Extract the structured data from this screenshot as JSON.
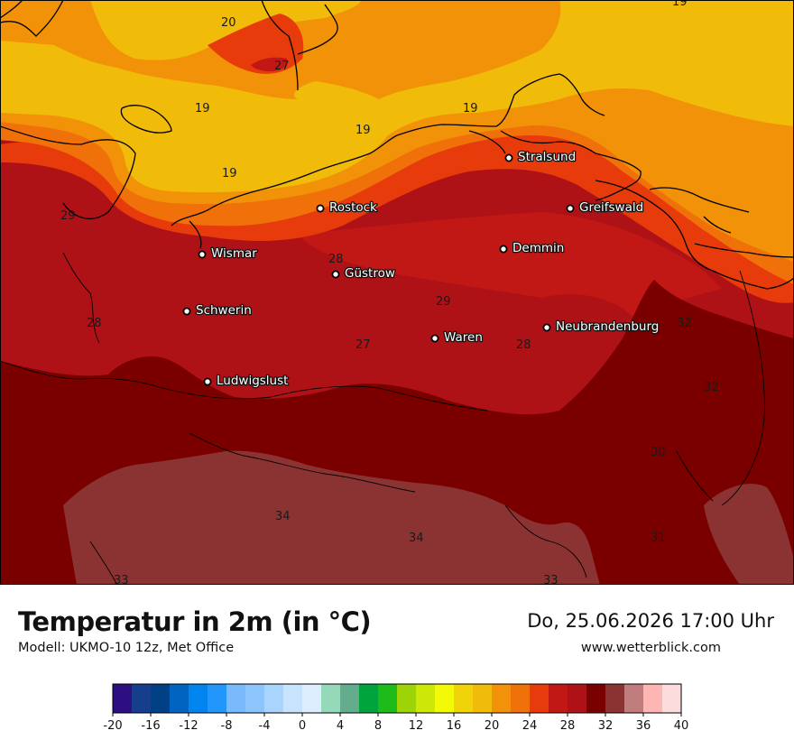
{
  "header": {
    "title": "Temperatur in 2m (in °C)",
    "model": "Modell: UKMO-10 12z, Met Office",
    "datetime": "Do, 25.06.2026 17:00 Uhr",
    "website": "www.wetterblick.com"
  },
  "cities": [
    {
      "name": "Stralsund"
    },
    {
      "name": "Rostock"
    },
    {
      "name": "Greifswald"
    },
    {
      "name": "Wismar"
    },
    {
      "name": "Demmin"
    },
    {
      "name": "Güstrow"
    },
    {
      "name": "Schwerin"
    },
    {
      "name": "Neubrandenburg"
    },
    {
      "name": "Waren"
    },
    {
      "name": "Ludwigslust"
    }
  ],
  "isotherm_labels": [
    "19",
    "20",
    "27",
    "19",
    "19",
    "19",
    "19",
    "29",
    "28",
    "29",
    "27",
    "28",
    "28",
    "32",
    "32",
    "30",
    "34",
    "34",
    "31",
    "33",
    "33"
  ],
  "legend": {
    "ticks": [
      "-20",
      "-16",
      "-12",
      "-8",
      "-4",
      "0",
      "4",
      "8",
      "12",
      "16",
      "20",
      "24",
      "28",
      "32",
      "36",
      "40"
    ],
    "colors": [
      "#2e0f82",
      "#173e8c",
      "#004186",
      "#0064c1",
      "#0085ef",
      "#2396fb",
      "#78bafb",
      "#8cc5fb",
      "#a8d4fd",
      "#c8e3fd",
      "#ddeefe",
      "#96d9b8",
      "#63ad8e",
      "#00a43c",
      "#1ebc1a",
      "#9ed407",
      "#cde807",
      "#f3f906",
      "#f1d30a",
      "#f1bb0a",
      "#f19208",
      "#f07109",
      "#e73b0b",
      "#c11815",
      "#af1216",
      "#7a0000",
      "#8b3333",
      "#c17d7d",
      "#fdb6b1",
      "#fcdcdc"
    ]
  },
  "palette": {
    "t19": "#f1bb0a",
    "t20": "#f19208",
    "t22": "#f07109",
    "t24": "#e73b0b",
    "t26": "#c11815",
    "t28": "#af1216",
    "t30": "#7a0000",
    "t32": "#8b3333"
  }
}
